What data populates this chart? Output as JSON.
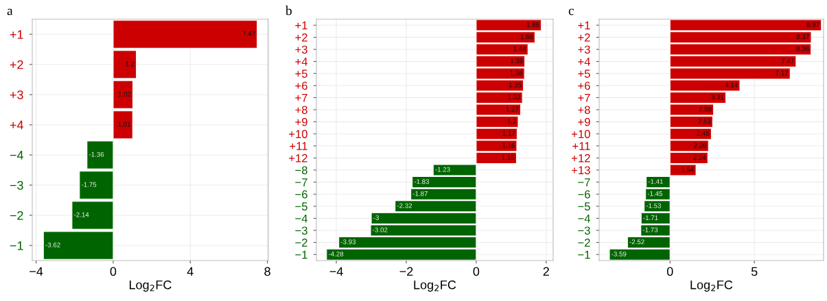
{
  "chart_data": [
    {
      "type": "bar",
      "orientation": "horizontal",
      "title": "a",
      "xlabel": "Log$_{2}$FC",
      "categories": [
        "+1",
        "+2",
        "+3",
        "+4",
        "−4",
        "−3",
        "−2",
        "−1"
      ],
      "values": [
        7.47,
        1.2,
        1.02,
        1.01,
        -1.36,
        -1.75,
        -2.14,
        -3.62
      ],
      "colors": [
        "#cc0000",
        "#cc0000",
        "#cc0000",
        "#cc0000",
        "#006400",
        "#006400",
        "#006400",
        "#006400"
      ],
      "xlim": [
        -4.2,
        8.05
      ],
      "xticks": [
        -4,
        0,
        4,
        8
      ],
      "grid": true,
      "data_labels": true
    },
    {
      "type": "bar",
      "orientation": "horizontal",
      "title": "b",
      "xlabel": "Log$_{2}$FC",
      "categories": [
        "+1",
        "+2",
        "+3",
        "+4",
        "+5",
        "+6",
        "+7",
        "+8",
        "+9",
        "+10",
        "+11",
        "+12",
        "−8",
        "−7",
        "−6",
        "−5",
        "−4",
        "−3",
        "−2",
        "−1"
      ],
      "values": [
        1.86,
        1.68,
        1.48,
        1.39,
        1.38,
        1.35,
        1.32,
        1.27,
        1.2,
        1.17,
        1.16,
        1.15,
        -1.23,
        -1.83,
        -1.87,
        -2.32,
        -3,
        -3.02,
        -3.93,
        -4.28
      ],
      "colors": [
        "#cc0000",
        "#cc0000",
        "#cc0000",
        "#cc0000",
        "#cc0000",
        "#cc0000",
        "#cc0000",
        "#cc0000",
        "#cc0000",
        "#cc0000",
        "#cc0000",
        "#cc0000",
        "#006400",
        "#006400",
        "#006400",
        "#006400",
        "#006400",
        "#006400",
        "#006400",
        "#006400"
      ],
      "xlim": [
        -4.57,
        2.2
      ],
      "xticks": [
        -4,
        -2,
        0,
        2
      ],
      "grid": true,
      "data_labels": true
    },
    {
      "type": "bar",
      "orientation": "horizontal",
      "title": "c",
      "xlabel": "Log$_{2}$FC",
      "categories": [
        "+1",
        "+2",
        "+3",
        "+4",
        "+5",
        "+6",
        "+7",
        "+8",
        "+9",
        "+10",
        "+11",
        "+12",
        "+13",
        "−7",
        "−6",
        "−5",
        "−4",
        "−3",
        "−2",
        "−1"
      ],
      "values": [
        8.97,
        8.37,
        8.36,
        7.47,
        7.12,
        4.14,
        3.31,
        2.58,
        2.53,
        2.45,
        2.28,
        2.24,
        1.54,
        -1.41,
        -1.45,
        -1.53,
        -1.71,
        -1.73,
        -2.52,
        -3.59
      ],
      "colors": [
        "#cc0000",
        "#cc0000",
        "#cc0000",
        "#cc0000",
        "#cc0000",
        "#cc0000",
        "#cc0000",
        "#cc0000",
        "#cc0000",
        "#cc0000",
        "#cc0000",
        "#cc0000",
        "#cc0000",
        "#006400",
        "#006400",
        "#006400",
        "#006400",
        "#006400",
        "#006400",
        "#006400"
      ],
      "xlim": [
        -4.2,
        9.1
      ],
      "xticks": [
        0,
        5
      ],
      "grid": true,
      "data_labels": true
    }
  ]
}
